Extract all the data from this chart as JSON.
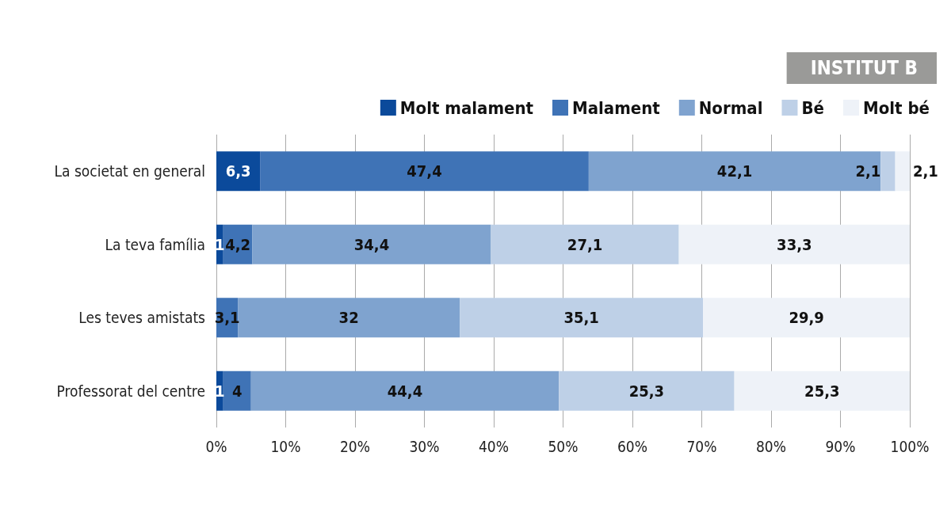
{
  "chart_data": {
    "type": "bar",
    "title": "INSTITUT B",
    "orientation": "horizontal",
    "stacked": true,
    "categories": [
      "La societat en general",
      "La teva família",
      "Les teves amistats",
      "Professorat del centre"
    ],
    "series": [
      {
        "name": "Molt malament",
        "color": "#0b4a9b",
        "values": [
          6.3,
          1,
          null,
          1
        ],
        "value_labels": [
          "6,3",
          "1",
          null,
          "1"
        ]
      },
      {
        "name": "Malament",
        "color": "#3f73b6",
        "values": [
          47.4,
          4.2,
          3.1,
          4
        ],
        "value_labels": [
          "47,4",
          "4,2",
          "3,1",
          "4"
        ]
      },
      {
        "name": "Normal",
        "color": "#7fa3cf",
        "values": [
          42.1,
          34.4,
          32,
          44.4
        ],
        "value_labels": [
          "42,1",
          "34,4",
          "32",
          "44,4"
        ]
      },
      {
        "name": "Bé",
        "color": "#bed0e7",
        "values": [
          2.1,
          27.1,
          35.1,
          25.3
        ],
        "value_labels": [
          "2,1",
          "27,1",
          "35,1",
          "25,3"
        ]
      },
      {
        "name": "Molt bé",
        "color": "#eef2f8",
        "values": [
          2.1,
          33.3,
          29.9,
          25.3
        ],
        "value_labels": [
          "2,1",
          "33,3",
          "29,9",
          "25,3"
        ]
      }
    ],
    "xlim": [
      0,
      100
    ],
    "xticks": [
      {
        "value": 0,
        "label": "0%"
      },
      {
        "value": 10,
        "label": "10%"
      },
      {
        "value": 20,
        "label": "20%"
      },
      {
        "value": 30,
        "label": "30%"
      },
      {
        "value": 40,
        "label": "40%"
      },
      {
        "value": 50,
        "label": "50%"
      },
      {
        "value": 60,
        "label": "60%"
      },
      {
        "value": 70,
        "label": "70%"
      },
      {
        "value": 80,
        "label": "80%"
      },
      {
        "value": 90,
        "label": "90%"
      },
      {
        "value": 100,
        "label": "100%"
      }
    ],
    "grid": "x",
    "legend": "top right"
  }
}
